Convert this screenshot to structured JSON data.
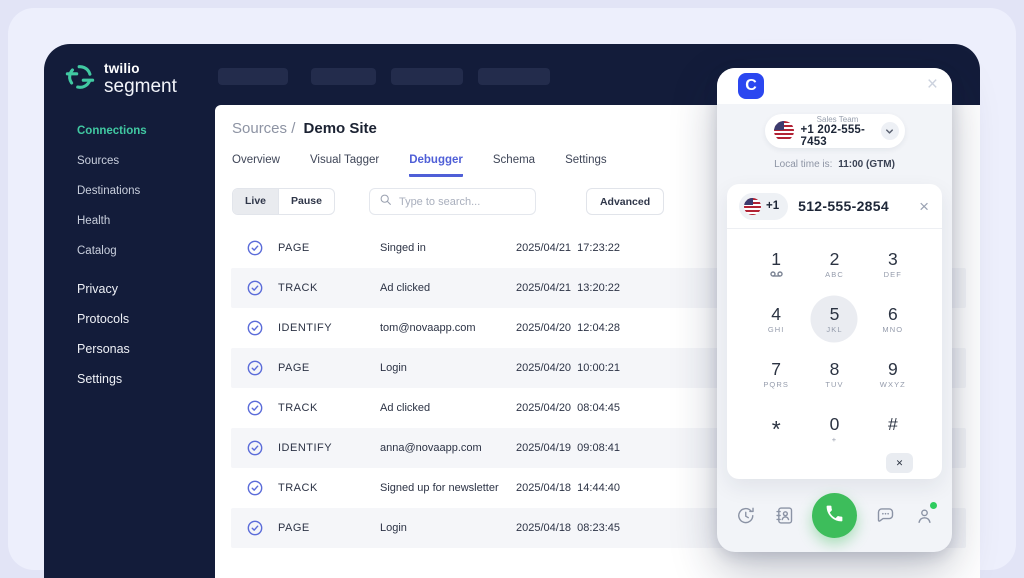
{
  "app": {
    "logo": {
      "brand_top": "twilio",
      "brand_bottom": "segment"
    },
    "sidebar": {
      "primary": [
        {
          "label": "Connections",
          "active": true
        },
        {
          "label": "Sources"
        },
        {
          "label": "Destinations"
        },
        {
          "label": "Health"
        },
        {
          "label": "Catalog"
        }
      ],
      "secondary": [
        {
          "label": "Privacy"
        },
        {
          "label": "Protocols"
        },
        {
          "label": "Personas"
        },
        {
          "label": "Settings"
        }
      ]
    },
    "breadcrumb": {
      "section": "Sources /",
      "current": "Demo Site"
    },
    "tabs": [
      {
        "label": "Overview"
      },
      {
        "label": "Visual Tagger"
      },
      {
        "label": "Debugger",
        "active": true
      },
      {
        "label": "Schema"
      },
      {
        "label": "Settings"
      }
    ],
    "toolbar": {
      "live_label": "Live",
      "pause_label": "Pause",
      "search_placeholder": "Type to search...",
      "advanced_label": "Advanced"
    },
    "table": {
      "rows": [
        {
          "type": "PAGE",
          "name": "Singed in",
          "date": "2025/04/21",
          "time": "17:23:22"
        },
        {
          "type": "TRACK",
          "name": "Ad clicked",
          "date": "2025/04/21",
          "time": "13:20:22"
        },
        {
          "type": "IDENTIFY",
          "name": "tom@novaapp.com",
          "date": "2025/04/20",
          "time": "12:04:28"
        },
        {
          "type": "PAGE",
          "name": "Login",
          "date": "2025/04/20",
          "time": "10:00:21"
        },
        {
          "type": "TRACK",
          "name": "Ad clicked",
          "date": "2025/04/20",
          "time": "08:04:45"
        },
        {
          "type": "IDENTIFY",
          "name": "anna@novaapp.com",
          "date": "2025/04/19",
          "time": "09:08:41"
        },
        {
          "type": "TRACK",
          "name": "Signed up for newsletter",
          "date": "2025/04/18",
          "time": "14:44:40"
        },
        {
          "type": "PAGE",
          "name": "Login",
          "date": "2025/04/18",
          "time": "08:23:45"
        }
      ]
    }
  },
  "widget": {
    "logo_letter": "C",
    "close_label": "×",
    "line_selector": {
      "team": "Sales Team",
      "number": "+1 202-555-7453"
    },
    "local_time": {
      "label": "Local time is:",
      "value": "11:00 (GTM)"
    },
    "dial_input": {
      "country_code": "+1",
      "number": "512-555-2854",
      "clear_label": "×"
    },
    "keypad": [
      {
        "digit": "1",
        "sub": "vm"
      },
      {
        "digit": "2",
        "sub": "ABC"
      },
      {
        "digit": "3",
        "sub": "DEF"
      },
      {
        "digit": "4",
        "sub": "GHI"
      },
      {
        "digit": "5",
        "sub": "JKL",
        "pressed": true
      },
      {
        "digit": "6",
        "sub": "MNO"
      },
      {
        "digit": "7",
        "sub": "PQRS"
      },
      {
        "digit": "8",
        "sub": "TUV"
      },
      {
        "digit": "9",
        "sub": "WXYZ"
      },
      {
        "digit": "*",
        "sub": ""
      },
      {
        "digit": "0",
        "sub": "+"
      },
      {
        "digit": "#",
        "sub": ""
      }
    ],
    "backspace_label": "✕",
    "footer_icons": [
      "call-history-icon",
      "contacts-icon",
      "call-button-icon",
      "chat-icon",
      "agent-status-icon"
    ]
  },
  "colors": {
    "window_navy": "#131c3a",
    "accent_teal": "#41c9a2",
    "tab_active_blue": "#4f5fd7",
    "check_blue": "#5b6cd9",
    "row_alt_gray": "#f5f6f9",
    "widget_logo_blue": "#2b47f0",
    "call_green": "#3dbd5b",
    "presence_green": "#2ecc5e"
  }
}
